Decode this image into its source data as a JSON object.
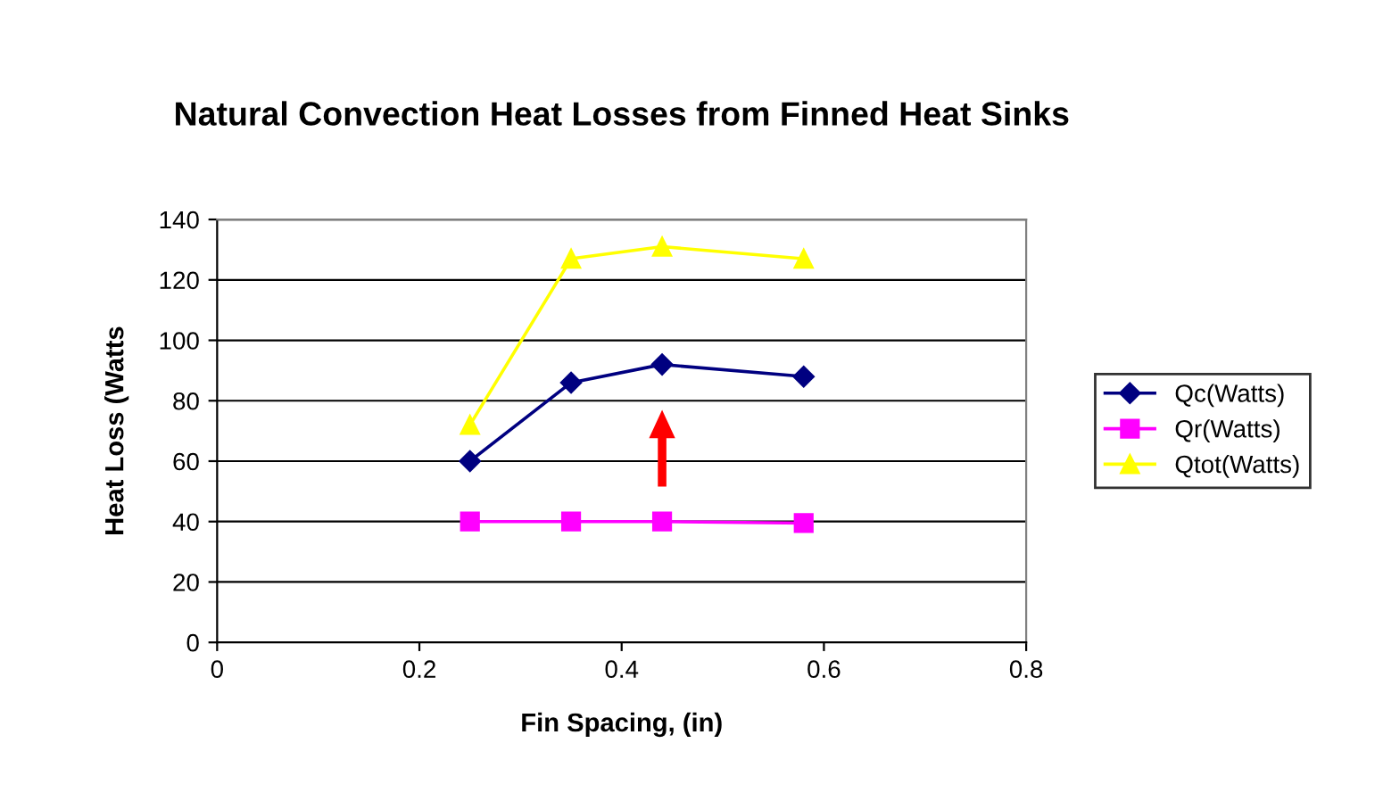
{
  "chart_data": {
    "type": "line",
    "title": "Natural Convection Heat Losses from Finned Heat Sinks",
    "xlabel": "Fin Spacing, (in)",
    "ylabel": "Heat Loss (Watts",
    "x": [
      0.25,
      0.35,
      0.44,
      0.58
    ],
    "series": [
      {
        "name": "Qc(Watts)",
        "color": "#000080",
        "marker": "diamond",
        "values": [
          60,
          86,
          92,
          88
        ]
      },
      {
        "name": "Qr(Watts)",
        "color": "#ff00ff",
        "marker": "square",
        "values": [
          40,
          40,
          40,
          39.5
        ]
      },
      {
        "name": "Qtot(Watts)",
        "color": "#ffff00",
        "marker": "triangle",
        "values": [
          72,
          127,
          131,
          127
        ]
      }
    ],
    "xlim": [
      0,
      0.8
    ],
    "xticks": [
      0,
      0.2,
      0.4,
      0.6,
      0.8
    ],
    "ylim": [
      0,
      140
    ],
    "yticks": [
      0,
      20,
      40,
      60,
      80,
      100,
      120,
      140
    ],
    "grid": "y",
    "legend": "right",
    "line_style": "solid"
  }
}
